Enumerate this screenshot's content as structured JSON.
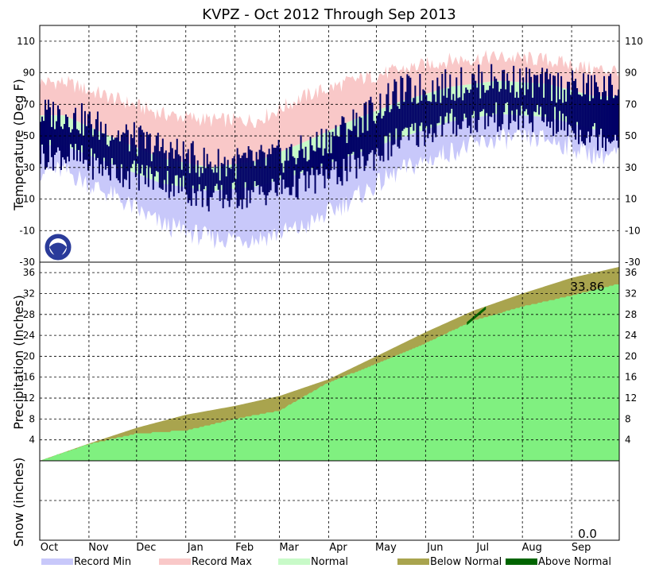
{
  "chart_data": {
    "type": "area",
    "title": "KVPZ - Oct 2012 Through Sep 2013",
    "months": [
      "Oct",
      "Nov",
      "Dec",
      "Jan",
      "Feb",
      "Mar",
      "Apr",
      "May",
      "Jun",
      "Jul",
      "Aug",
      "Sep"
    ],
    "month_days": [
      31,
      30,
      31,
      31,
      28,
      31,
      30,
      31,
      30,
      31,
      31,
      30
    ],
    "temperature": {
      "ylabel": "Temperature (Deg F)",
      "ylim": [
        -30,
        120
      ],
      "ticks": [
        110,
        90,
        70,
        50,
        30,
        10,
        -10,
        -30
      ],
      "record_max_monthly": [
        84,
        74,
        64,
        60,
        60,
        75,
        85,
        92,
        98,
        100,
        98,
        92
      ],
      "record_min_monthly": [
        28,
        12,
        -6,
        -15,
        -15,
        -8,
        10,
        28,
        40,
        48,
        48,
        38
      ],
      "normal_high_monthly": [
        63,
        49,
        36,
        30,
        34,
        46,
        60,
        72,
        81,
        85,
        83,
        75
      ],
      "normal_low_monthly": [
        44,
        32,
        20,
        15,
        18,
        27,
        38,
        49,
        59,
        64,
        62,
        54
      ],
      "observed_high_monthly": [
        64,
        52,
        42,
        32,
        34,
        40,
        58,
        78,
        82,
        86,
        82,
        80
      ],
      "observed_low_monthly": [
        38,
        28,
        22,
        10,
        14,
        20,
        30,
        48,
        58,
        62,
        60,
        50
      ]
    },
    "precipitation": {
      "ylabel": "Precipitation (Inches)",
      "ylim": [
        0,
        38
      ],
      "ticks": [
        4,
        8,
        12,
        16,
        20,
        24,
        28,
        32,
        36
      ],
      "normal_cumulative_end_of_month": [
        0,
        3.3,
        6.3,
        8.8,
        10.5,
        12.4,
        15.6,
        20.0,
        24.6,
        28.7,
        32.0,
        35.0,
        37.1
      ],
      "observed_cumulative_end_of_month": [
        0,
        3.2,
        5.2,
        5.8,
        8.0,
        9.6,
        15.0,
        18.5,
        22.5,
        26.8,
        29.5,
        31.6,
        33.86
      ],
      "total_label": "33.86"
    },
    "snow": {
      "ylabel": "Snow (inches)",
      "total_label": "0.0"
    },
    "legend": [
      {
        "name": "Record Min",
        "color": "#c8c8fa"
      },
      {
        "name": "Record Max",
        "color": "#f9c8c8"
      },
      {
        "name": "Normal",
        "color": "#c8fac8"
      },
      {
        "name": "Below Normal",
        "color": "#a9a44e"
      },
      {
        "name": "Above Normal",
        "color": "#006400"
      }
    ],
    "colors": {
      "observed": "#000066",
      "precip_observed": "#80f080",
      "precip_below": "#a9a44e",
      "precip_above": "#006400"
    }
  }
}
